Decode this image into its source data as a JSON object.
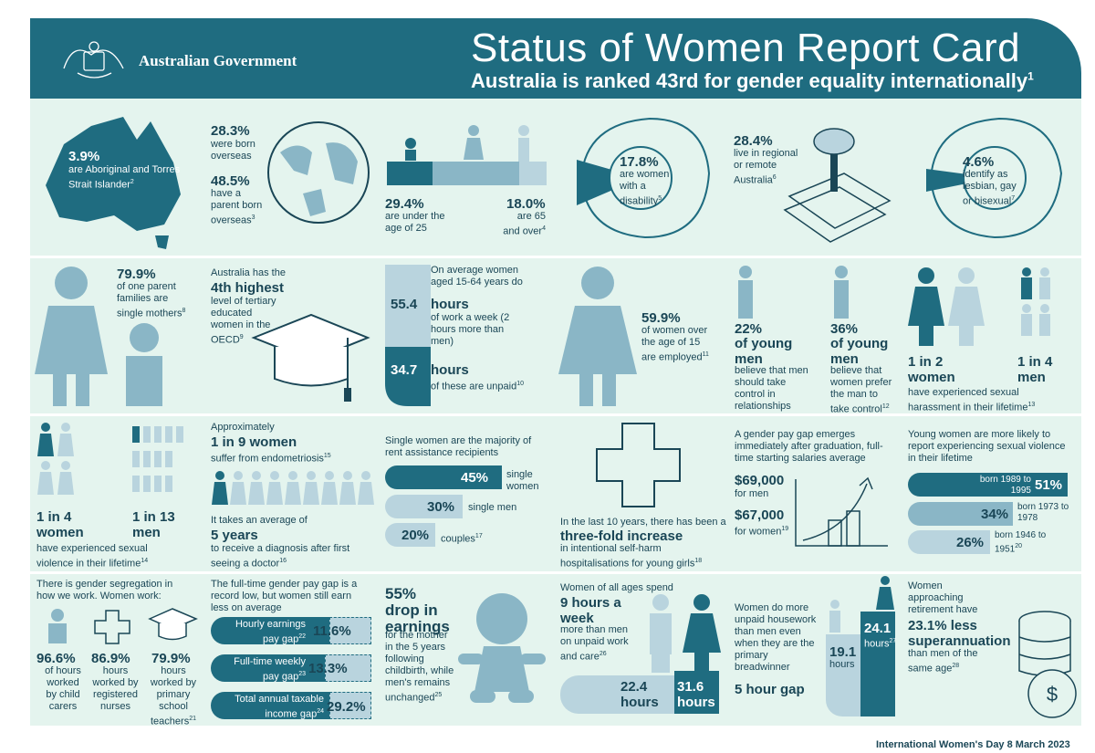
{
  "header": {
    "title": "Status of Women Report Card",
    "subtitle": "Australia is ranked 43rd for gender equality internationally",
    "subtitle_sup": "1",
    "gov": "Australian Government"
  },
  "row1": {
    "ab_pct": "3.9%",
    "ab_text": "are Aboriginal and Torres Strait Islander",
    "ab_sup": "2",
    "born_pct": "28.3%",
    "born_text": "were born overseas",
    "parent_pct": "48.5%",
    "parent_text": "have a parent born overseas",
    "parent_sup": "3",
    "under_pct": "29.4%",
    "under_text": "are under the age of 25",
    "over_pct": "18.0%",
    "over_text": "are 65 and over",
    "over_sup": "4",
    "dis_pct": "17.8%",
    "dis_text": "are women with a disability",
    "dis_sup": "5",
    "reg_pct": "28.4%",
    "reg_text": "live in regional or remote Australia",
    "reg_sup": "6",
    "lgb_pct": "4.6%",
    "lgb_text": "identify as lesbian, gay or bisexual",
    "lgb_sup": "7"
  },
  "row2": {
    "sp_pct": "79.9%",
    "sp_text": "of one parent families are single mothers",
    "sp_sup": "8",
    "ed_pre": "Australia has the",
    "ed_big": "4th highest",
    "ed_text": "level of tertiary educated women in the OECD",
    "ed_sup": "9",
    "work_intro": "On average women aged 15-64 years do",
    "hours_total": "55.4",
    "hours_label": "hours",
    "hours_text": "of work a week (2 hours more than men)",
    "hours_unpaid": "34.7",
    "unpaid_label": "hours",
    "unpaid_text": "of these are unpaid",
    "unpaid_sup": "10",
    "emp_pct": "59.9%",
    "emp_text": "of women over the age of 15 are employed",
    "emp_sup": "11",
    "ym1_pct": "22%",
    "ym1_big": "of young men",
    "ym1_text": "believe that men should take control in relationships",
    "ym2_pct": "36%",
    "ym2_big": "of young men",
    "ym2_text": "believe that women prefer the man to take control",
    "ym2_sup": "12",
    "har_w": "1 in 2 women",
    "har_m": "1 in 4 men",
    "har_text": "have experienced sexual harassment in their lifetime",
    "har_sup": "13"
  },
  "row3": {
    "sv_w": "1 in 4 women",
    "sv_m": "1 in 13 men",
    "sv_text": "have experienced sexual violence in their lifetime",
    "sv_sup": "14",
    "endo_pre": "Approximately",
    "endo_big": "1 in 9 women",
    "endo_text": "suffer from endometriosis",
    "endo_sup": "15",
    "diag_pre": "It takes an average of",
    "diag_big": "5 years",
    "diag_text": "to receive a diagnosis after first seeing a doctor",
    "diag_sup": "16",
    "rent_intro": "Single women are the majority of rent assistance recipients",
    "rent": [
      {
        "value": "45%",
        "label": "single women"
      },
      {
        "value": "30%",
        "label": "single men"
      },
      {
        "value": "20%",
        "label": "couples",
        "sup": "17"
      }
    ],
    "sh_pre": "In the last 10 years, there has been a",
    "sh_big": "three-fold increase",
    "sh_text": "in intentional self-harm hospitalisations for young girls",
    "sh_sup": "18",
    "gap_intro": "A gender pay gap emerges immediately after graduation, full-time starting salaries average",
    "sal_m": "$69,000",
    "sal_m_label": "for men",
    "sal_w": "$67,000",
    "sal_w_label": "for women",
    "sal_sup": "19",
    "yw_intro": "Young women are more likely to report experiencing sexual violence in their lifetime",
    "yw": [
      {
        "value": "51%",
        "label": "born 1989 to 1995"
      },
      {
        "value": "34%",
        "label": "born 1973 to 1978"
      },
      {
        "value": "26%",
        "label": "born 1946 to 1951",
        "sup": "20"
      }
    ]
  },
  "row4": {
    "seg_intro": "There is gender segregation in how we work. Women work:",
    "seg": [
      {
        "value": "96.6%",
        "label": "of hours worked by child carers"
      },
      {
        "value": "86.9%",
        "label": "hours worked by registered nurses"
      },
      {
        "value": "79.9%",
        "label": "hours worked by primary school teachers",
        "sup": "21"
      }
    ],
    "pg_intro": "The full-time gender pay gap is a record low, but women still earn less on average",
    "pg": [
      {
        "label": "Hourly earnings pay gap",
        "sup": "22",
        "value": "11.6%"
      },
      {
        "label": "Full-time weekly pay gap",
        "sup": "23",
        "value": "13.3%"
      },
      {
        "label": "Total annual taxable income gap",
        "sup": "24",
        "value": "29.2%"
      }
    ],
    "drop_pct": "55%",
    "drop_big": "drop in earnings",
    "drop_text": "for the mother in the 5 years following childbirth, while men's remains unchanged",
    "drop_sup": "25",
    "care_intro": "Women of all ages spend",
    "care_big": "9 hours a week",
    "care_text": "more than men on unpaid work and care",
    "care_sup": "26",
    "care_m": "22.4 hours",
    "care_w": "31.6 hours",
    "hw_text": "Women do more unpaid housework than men even when they are the primary breadwinner",
    "hw_big": "5 hour gap",
    "hw_m": "19.1",
    "hw_m_label": "hours",
    "hw_w": "24.1",
    "hw_w_label": "hours",
    "hw_sup": "27",
    "sup_intro": "Women approaching retirement have",
    "sup_big": "23.1% less superannuation",
    "sup_text": "than men of the same age",
    "sup_sup": "28"
  },
  "footer": "International Women's Day 8 March 2023"
}
